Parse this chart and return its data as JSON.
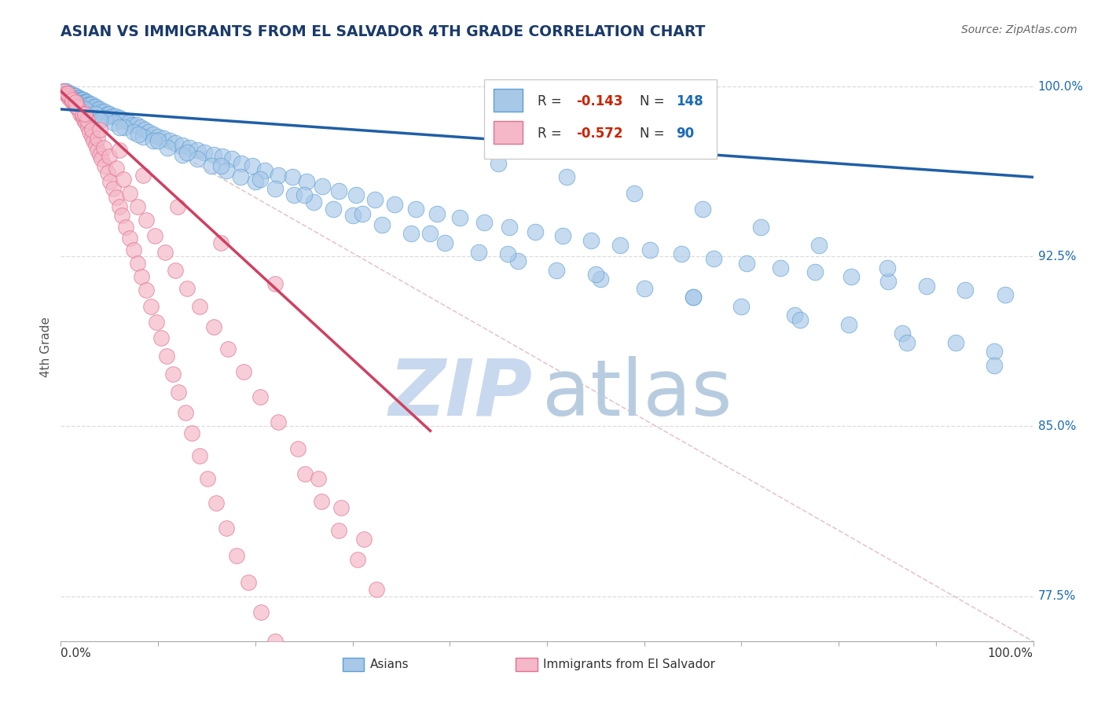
{
  "title": "ASIAN VS IMMIGRANTS FROM EL SALVADOR 4TH GRADE CORRELATION CHART",
  "source_text": "Source: ZipAtlas.com",
  "ylabel": "4th Grade",
  "x_min": 0.0,
  "x_max": 1.0,
  "y_min": 0.755,
  "y_max": 1.015,
  "blue_color": "#a8c8e8",
  "blue_edge_color": "#5a9fd4",
  "pink_color": "#f4b8c8",
  "pink_edge_color": "#e07090",
  "blue_line_color": "#1f5fa6",
  "pink_line_color": "#d04060",
  "dashed_line_color": "#e0b8c0",
  "title_color": "#1a3a6b",
  "source_color": "#666666",
  "legend_R_color": "#cc2200",
  "legend_N_color": "#1a6bb5",
  "watermark_zip_color": "#c8d8ee",
  "watermark_atlas_color": "#b8cce0",
  "grid_color": "#dddddd",
  "y_tick_vals": [
    0.775,
    0.85,
    0.925,
    1.0
  ],
  "y_tick_labels": [
    "77.5%",
    "85.0%",
    "92.5%",
    "100.0%"
  ],
  "asian_x": [
    0.003,
    0.005,
    0.007,
    0.008,
    0.009,
    0.01,
    0.011,
    0.012,
    0.013,
    0.014,
    0.015,
    0.016,
    0.017,
    0.018,
    0.019,
    0.02,
    0.021,
    0.022,
    0.023,
    0.024,
    0.025,
    0.026,
    0.027,
    0.028,
    0.029,
    0.03,
    0.032,
    0.034,
    0.036,
    0.038,
    0.04,
    0.042,
    0.045,
    0.048,
    0.05,
    0.053,
    0.056,
    0.06,
    0.063,
    0.066,
    0.07,
    0.074,
    0.078,
    0.082,
    0.086,
    0.09,
    0.095,
    0.1,
    0.106,
    0.112,
    0.118,
    0.125,
    0.132,
    0.14,
    0.148,
    0.157,
    0.166,
    0.176,
    0.186,
    0.197,
    0.21,
    0.224,
    0.238,
    0.253,
    0.269,
    0.286,
    0.304,
    0.323,
    0.343,
    0.365,
    0.387,
    0.41,
    0.435,
    0.461,
    0.488,
    0.516,
    0.545,
    0.575,
    0.606,
    0.638,
    0.671,
    0.705,
    0.74,
    0.776,
    0.813,
    0.851,
    0.89,
    0.93,
    0.971,
    0.015,
    0.025,
    0.035,
    0.045,
    0.055,
    0.065,
    0.075,
    0.085,
    0.095,
    0.11,
    0.125,
    0.14,
    0.155,
    0.17,
    0.185,
    0.2,
    0.22,
    0.24,
    0.26,
    0.28,
    0.3,
    0.33,
    0.36,
    0.395,
    0.43,
    0.47,
    0.51,
    0.555,
    0.6,
    0.65,
    0.7,
    0.755,
    0.81,
    0.865,
    0.92,
    0.96,
    0.04,
    0.06,
    0.08,
    0.1,
    0.13,
    0.165,
    0.205,
    0.25,
    0.31,
    0.38,
    0.46,
    0.55,
    0.65,
    0.76,
    0.87,
    0.96,
    0.85,
    0.78,
    0.72,
    0.66,
    0.59,
    0.52,
    0.45
  ],
  "asian_y": [
    0.998,
    0.998,
    0.997,
    0.997,
    0.997,
    0.997,
    0.996,
    0.996,
    0.996,
    0.996,
    0.996,
    0.995,
    0.995,
    0.995,
    0.995,
    0.994,
    0.994,
    0.994,
    0.994,
    0.993,
    0.993,
    0.993,
    0.993,
    0.992,
    0.992,
    0.992,
    0.992,
    0.991,
    0.991,
    0.99,
    0.99,
    0.989,
    0.989,
    0.988,
    0.988,
    0.987,
    0.987,
    0.986,
    0.985,
    0.985,
    0.984,
    0.983,
    0.983,
    0.982,
    0.981,
    0.98,
    0.979,
    0.978,
    0.977,
    0.976,
    0.975,
    0.974,
    0.973,
    0.972,
    0.971,
    0.97,
    0.969,
    0.968,
    0.966,
    0.965,
    0.963,
    0.961,
    0.96,
    0.958,
    0.956,
    0.954,
    0.952,
    0.95,
    0.948,
    0.946,
    0.944,
    0.942,
    0.94,
    0.938,
    0.936,
    0.934,
    0.932,
    0.93,
    0.928,
    0.926,
    0.924,
    0.922,
    0.92,
    0.918,
    0.916,
    0.914,
    0.912,
    0.91,
    0.908,
    0.993,
    0.99,
    0.988,
    0.986,
    0.984,
    0.982,
    0.98,
    0.978,
    0.976,
    0.973,
    0.97,
    0.968,
    0.965,
    0.963,
    0.96,
    0.958,
    0.955,
    0.952,
    0.949,
    0.946,
    0.943,
    0.939,
    0.935,
    0.931,
    0.927,
    0.923,
    0.919,
    0.915,
    0.911,
    0.907,
    0.903,
    0.899,
    0.895,
    0.891,
    0.887,
    0.883,
    0.985,
    0.982,
    0.979,
    0.976,
    0.971,
    0.965,
    0.959,
    0.952,
    0.944,
    0.935,
    0.926,
    0.917,
    0.907,
    0.897,
    0.887,
    0.877,
    0.92,
    0.93,
    0.938,
    0.946,
    0.953,
    0.96,
    0.966
  ],
  "salvador_x": [
    0.003,
    0.005,
    0.007,
    0.008,
    0.009,
    0.01,
    0.012,
    0.014,
    0.016,
    0.018,
    0.02,
    0.022,
    0.024,
    0.026,
    0.028,
    0.03,
    0.032,
    0.034,
    0.036,
    0.038,
    0.04,
    0.042,
    0.045,
    0.048,
    0.051,
    0.054,
    0.057,
    0.06,
    0.063,
    0.067,
    0.071,
    0.075,
    0.079,
    0.083,
    0.088,
    0.093,
    0.098,
    0.103,
    0.109,
    0.115,
    0.121,
    0.128,
    0.135,
    0.143,
    0.151,
    0.16,
    0.17,
    0.181,
    0.193,
    0.206,
    0.22,
    0.235,
    0.251,
    0.268,
    0.286,
    0.305,
    0.325,
    0.007,
    0.012,
    0.017,
    0.022,
    0.027,
    0.032,
    0.038,
    0.044,
    0.05,
    0.057,
    0.064,
    0.071,
    0.079,
    0.088,
    0.097,
    0.107,
    0.118,
    0.13,
    0.143,
    0.157,
    0.172,
    0.188,
    0.205,
    0.224,
    0.244,
    0.265,
    0.288,
    0.312,
    0.015,
    0.025,
    0.04,
    0.06,
    0.085,
    0.12,
    0.165,
    0.22
  ],
  "salvador_y": [
    0.998,
    0.997,
    0.996,
    0.996,
    0.995,
    0.995,
    0.993,
    0.992,
    0.991,
    0.99,
    0.988,
    0.987,
    0.985,
    0.984,
    0.982,
    0.98,
    0.978,
    0.976,
    0.974,
    0.972,
    0.97,
    0.968,
    0.965,
    0.962,
    0.958,
    0.955,
    0.951,
    0.947,
    0.943,
    0.938,
    0.933,
    0.928,
    0.922,
    0.916,
    0.91,
    0.903,
    0.896,
    0.889,
    0.881,
    0.873,
    0.865,
    0.856,
    0.847,
    0.837,
    0.827,
    0.816,
    0.805,
    0.793,
    0.781,
    0.768,
    0.755,
    0.742,
    0.829,
    0.817,
    0.804,
    0.791,
    0.778,
    0.997,
    0.994,
    0.991,
    0.988,
    0.985,
    0.981,
    0.977,
    0.973,
    0.969,
    0.964,
    0.959,
    0.953,
    0.947,
    0.941,
    0.934,
    0.927,
    0.919,
    0.911,
    0.903,
    0.894,
    0.884,
    0.874,
    0.863,
    0.852,
    0.84,
    0.827,
    0.814,
    0.8,
    0.993,
    0.988,
    0.981,
    0.972,
    0.961,
    0.947,
    0.931,
    0.913
  ],
  "pink_trend_x0": 0.0,
  "pink_trend_y0": 0.998,
  "pink_trend_x1": 0.38,
  "pink_trend_y1": 0.848,
  "blue_trend_x0": 0.0,
  "blue_trend_y0": 0.99,
  "blue_trend_x1": 1.0,
  "blue_trend_y1": 0.96
}
